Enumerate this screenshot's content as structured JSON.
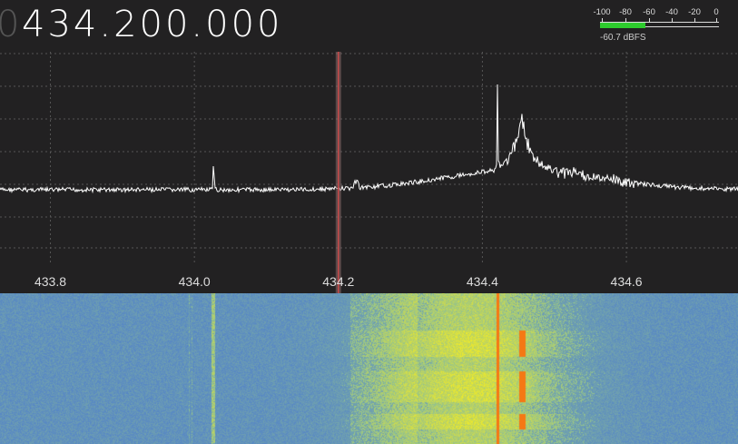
{
  "receiver": {
    "frequency_leading": "0",
    "frequency": "434.200.000"
  },
  "level_meter": {
    "scale": [
      "-100",
      "-80",
      "-60",
      "-40",
      "-20",
      "0"
    ],
    "level_dbfs": -60.7,
    "readout": "-60.7 dBFS",
    "bar_color": "#2ecc2e"
  },
  "spectrum": {
    "x_ticks": [
      "433.8",
      "434.0",
      "434.2",
      "434.4",
      "434.6"
    ],
    "x_tick_values": [
      433.8,
      434.0,
      434.2,
      434.4,
      434.6
    ],
    "x_range_mhz": [
      433.73,
      434.755
    ],
    "tuned_mhz": 434.2,
    "grid": true,
    "trace_color": "#ffffff",
    "cursor_color": "#c94a4a"
  },
  "waterfall": {
    "low_color": "#5b86c6",
    "high_color": "#f5f020",
    "peak_color": "#f07a10"
  }
}
